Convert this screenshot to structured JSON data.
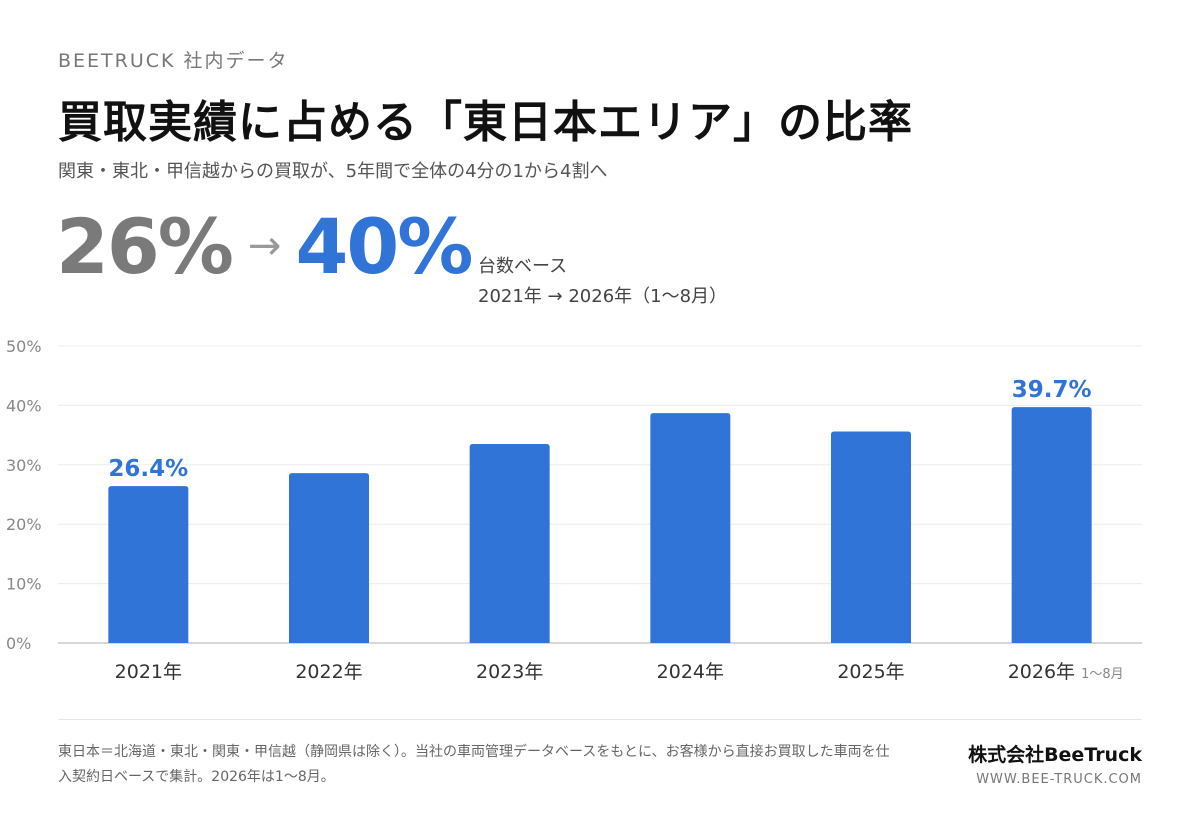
{
  "header": {
    "eyebrow": "BEETRUCK 社内データ",
    "title": "買取実績に占める「東日本エリア」の比率",
    "subtitle": "関東・東北・甲信越からの買取が、5年間で全体の4分の1から4割へ"
  },
  "kpi": {
    "from": "26%",
    "arrow": "→",
    "to": "40%",
    "basis": "台数ベース",
    "period": "2021年 → 2026年（1〜8月）"
  },
  "colors": {
    "bar": "#2f74d6",
    "label": "#2f74d6",
    "from": "#7a7a7a",
    "grid": "#ececec",
    "axis": "#d8d8d8"
  },
  "chart_data": {
    "type": "bar",
    "categories": [
      "2021年",
      "2022年",
      "2023年",
      "2024年",
      "2025年",
      "2026年"
    ],
    "category_notes": [
      "",
      "",
      "",
      "",
      "",
      "1〜8月"
    ],
    "values": [
      26.4,
      28.6,
      33.5,
      38.7,
      35.6,
      39.7
    ],
    "data_labels": [
      "26.4%",
      "",
      "",
      "",
      "",
      "39.7%"
    ],
    "unit": "%",
    "ylim": [
      0,
      50
    ],
    "yticks": [
      "0%",
      "10%",
      "20%",
      "30%",
      "40%",
      "50%"
    ],
    "grid": true,
    "legend": "none"
  },
  "footer": {
    "note": "東日本＝北海道・東北・関東・甲信越（静岡県は除く）。当社の車両管理データベースをもとに、お客様から直接お買取した車両を仕入契約日ベースで集計。2026年は1〜8月。",
    "company": "株式会社BeeTruck",
    "website": "WWW.BEE-TRUCK.COM"
  }
}
